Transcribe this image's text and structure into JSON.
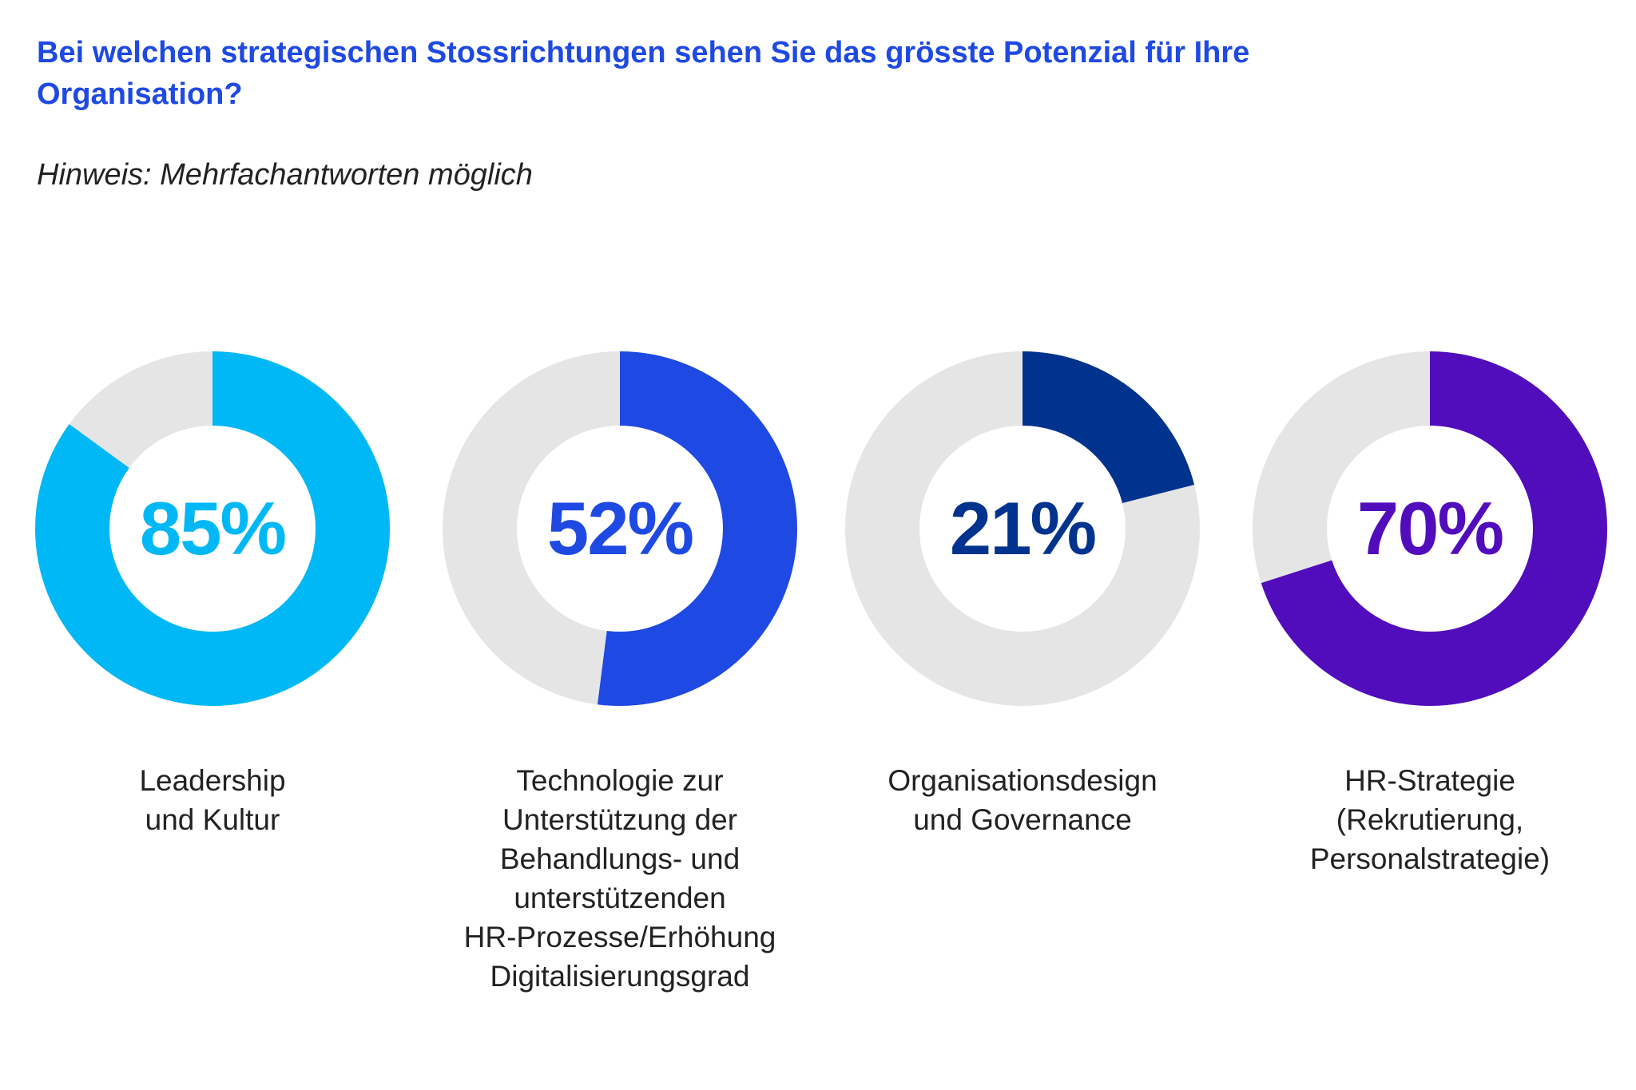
{
  "chart_data": {
    "type": "donut",
    "title": "Bei welchen strategischen Stossrichtungen sehen Sie das grösste Potenzial für Ihre Organisation?",
    "subtitle": "Hinweis: Mehrfachantworten möglich",
    "track_color": "#E5E5E5",
    "items": [
      {
        "label": "Leadership und Kultur",
        "label_lines": [
          "Leadership",
          "und Kultur"
        ],
        "value": 85,
        "display": "85%",
        "color": "#00B8F5"
      },
      {
        "label": "Technologie zur Unterstützung der Behandlungs- und unterstützenden HR-Prozesse/Erhöhung Digitalisierungsgrad",
        "label_lines": [
          "Technologie zur",
          "Unterstützung der",
          "Behandlungs- und",
          "unterstützenden",
          "HR-Prozesse/Erhöhung",
          "Digitalisierungsgrad"
        ],
        "value": 52,
        "display": "52%",
        "color": "#1E49E2"
      },
      {
        "label": "Organisationsdesign und Governance",
        "label_lines": [
          "Organisationsdesign",
          "und Governance"
        ],
        "value": 21,
        "display": "21%",
        "color": "#00338D"
      },
      {
        "label": "HR-Strategie (Rekrutierung, Personalstrategie)",
        "label_lines": [
          "HR-Strategie",
          "(Rekrutierung,",
          "Personalstrategie)"
        ],
        "value": 70,
        "display": "70%",
        "color": "#510DBC"
      }
    ]
  }
}
